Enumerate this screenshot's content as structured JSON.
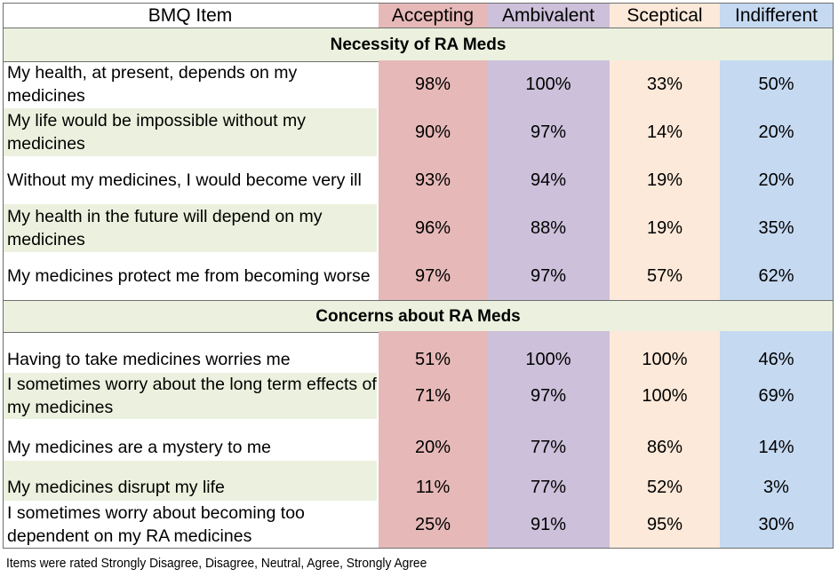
{
  "header": {
    "item_label": "BMQ Item",
    "groups": [
      "Accepting",
      "Ambivalent",
      "Sceptical",
      "Indifferent"
    ]
  },
  "colors": {
    "section_bg": "#ebf1de",
    "stripe_bg": "#ebf1de",
    "col_header": [
      "#e6b9b8",
      "#ccc0da",
      "#fde9d9",
      "#c5d9f1"
    ],
    "col_body": [
      "#e6b9b8",
      "#ccc0da",
      "#fde9d9",
      "#c5d9f1"
    ]
  },
  "sections": [
    {
      "title": "Necessity of RA Meds",
      "rows": [
        {
          "item": "My health, at present, depends on my medicines",
          "values": [
            "98%",
            "100%",
            "33%",
            "50%"
          ]
        },
        {
          "item": "My life would be impossible without my medicines",
          "values": [
            "90%",
            "97%",
            "14%",
            "20%"
          ]
        },
        {
          "item": "Without my medicines, I would become very ill",
          "values": [
            "93%",
            "94%",
            "19%",
            "20%"
          ]
        },
        {
          "item": "My health in the future will depend on my medicines",
          "values": [
            "96%",
            "88%",
            "19%",
            "35%"
          ]
        },
        {
          "item": "My medicines protect me from becoming worse",
          "values": [
            "97%",
            "97%",
            "57%",
            "62%"
          ]
        }
      ]
    },
    {
      "title": "Concerns about RA Meds",
      "rows": [
        {
          "item": "Having to take medicines worries me",
          "values": [
            "51%",
            "100%",
            "100%",
            "46%"
          ]
        },
        {
          "item": "I sometimes worry about the long term effects of my medicines",
          "values": [
            "71%",
            "97%",
            "100%",
            "69%"
          ]
        },
        {
          "item": "My medicines are a mystery to me",
          "values": [
            "20%",
            "77%",
            "86%",
            "14%"
          ]
        },
        {
          "item": "My medicines disrupt my life",
          "values": [
            "11%",
            "77%",
            "52%",
            "3%"
          ]
        },
        {
          "item": "I sometimes worry about becoming too dependent on my RA medicines",
          "values": [
            "25%",
            "91%",
            "95%",
            "30%"
          ]
        }
      ]
    }
  ],
  "footnote": "Items were rated Strongly Disagree, Disagree, Neutral, Agree, Strongly Agree"
}
